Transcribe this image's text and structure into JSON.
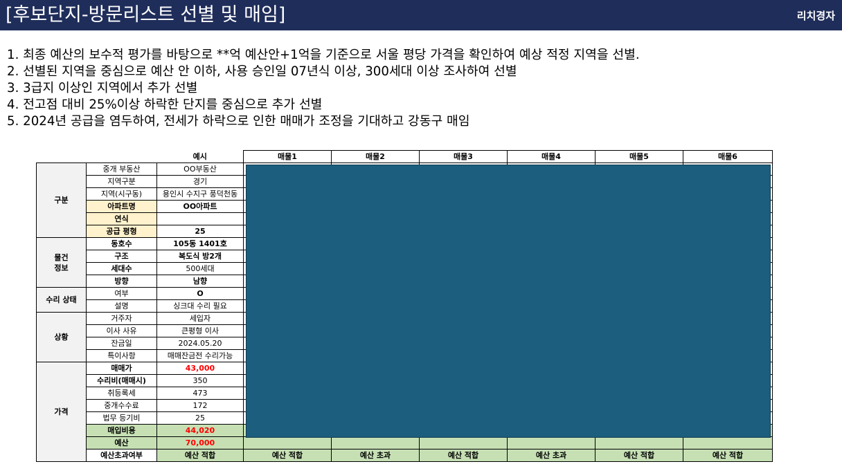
{
  "header": {
    "title": "[후보단지-방문리스트 선별 및 매임]",
    "brand": "리치경자"
  },
  "steps": [
    "1. 최종 예산의 보수적 평가를 바탕으로  **억 예산안+1억을 기준으로 서울 평당 가격을 확인하여 예상 적정 지역을 선별.",
    "2. 선별된 지역을 중심으로 예산 안 이하, 사용 승인일 07년식 이상, 300세대 이상 조사하여 선별",
    "3. 3급지 이상인 지역에서 추가 선별",
    "4. 전고점 대비 25%이상 하락한 단지를 중심으로 추가 선별",
    "5. 2024년 공급을 염두하여, 전세가 하락으로 인한 매매가 조정을 기대하고 강동구 매임"
  ],
  "table": {
    "col_example": "예시",
    "col_items": [
      "매물1",
      "매물2",
      "매물3",
      "매물4",
      "매물5",
      "매물6"
    ],
    "sections": {
      "basic": "구분",
      "info": "물건\n정보",
      "repair": "수리 상태",
      "situation": "상황",
      "price": "가격"
    },
    "rows": {
      "agency": {
        "label": "중개 부동산",
        "value": "OO부동산"
      },
      "region": {
        "label": "지역구분",
        "value": "경기"
      },
      "district": {
        "label": "지역(시구동)",
        "value": "용인시 수지구 풍덕천동"
      },
      "apt": {
        "label": "아파트명",
        "value": "OO아파트"
      },
      "year": {
        "label": "연식",
        "value": ""
      },
      "supply": {
        "label": "공급 평형",
        "value": "25"
      },
      "unit": {
        "label": "동호수",
        "value": "105동 1401호"
      },
      "structure": {
        "label": "구조",
        "value": "복도식 방2개"
      },
      "households": {
        "label": "세대수",
        "value": "500세대"
      },
      "direction": {
        "label": "방향",
        "value": "남향"
      },
      "repair_yn": {
        "label": "여부",
        "value": "O"
      },
      "repair_desc": {
        "label": "설명",
        "value": "싱크대 수리 필요"
      },
      "resident": {
        "label": "거주자",
        "value": "세입자"
      },
      "move_reason": {
        "label": "이사 사유",
        "value": "큰평형 이사"
      },
      "balance_date": {
        "label": "잔금일",
        "value": "2024.05.20"
      },
      "notes": {
        "label": "특이사항",
        "value": "매매잔금전 수리가능"
      },
      "sale_price": {
        "label": "매매가",
        "value": "43,000"
      },
      "repair_cost": {
        "label": "수리비(매매시)",
        "value": "350"
      },
      "acq_tax": {
        "label": "취등록세",
        "value": "473"
      },
      "broker_fee": {
        "label": "중개수수료",
        "value": "172"
      },
      "legal_fee": {
        "label": "법무 등기비",
        "value": "25"
      },
      "total_cost": {
        "label": "매입비용",
        "value": "44,020"
      },
      "budget": {
        "label": "예산",
        "value": "70,000"
      },
      "over_budget": {
        "label": "예산초과여부",
        "value": "예산 적합",
        "items": [
          "예산 적합",
          "예산 초과",
          "예산 적합",
          "예산 초과",
          "예산 적합",
          "예산 적합"
        ]
      }
    }
  }
}
